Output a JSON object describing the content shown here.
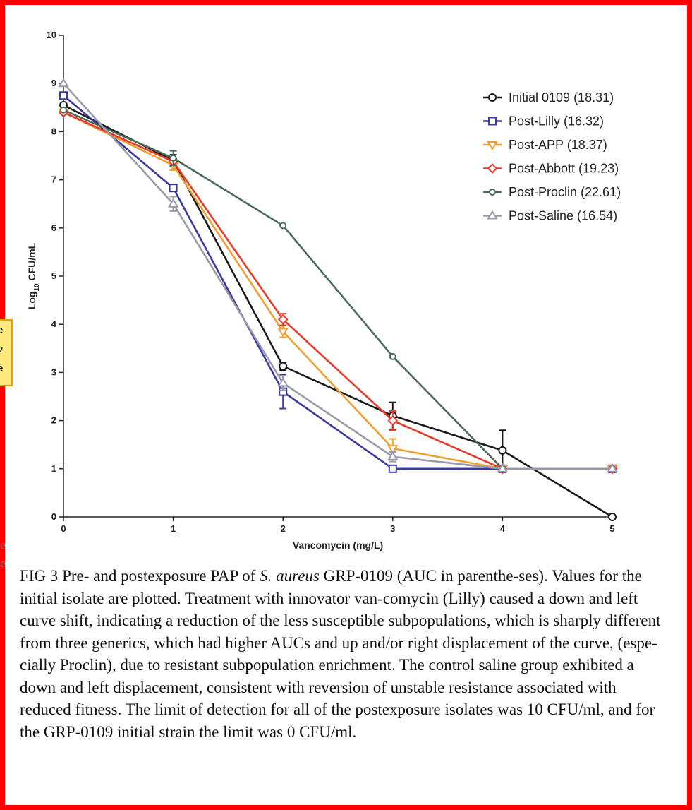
{
  "chart_data": {
    "type": "line",
    "xlabel": "Vancomycin (mg/L)",
    "ylabel_main": "Log",
    "ylabel_sub": "10",
    "ylabel_tail": " CFU/mL",
    "xlim": [
      0,
      5
    ],
    "ylim": [
      0,
      10
    ],
    "x_ticks": [
      0,
      1,
      2,
      3,
      4,
      5
    ],
    "y_ticks": [
      0,
      1,
      2,
      3,
      4,
      5,
      6,
      7,
      8,
      9,
      10
    ],
    "legend_position": "top-right",
    "series": [
      {
        "name": "Initial 0109 (18.31)",
        "color": "#1a1a1a",
        "marker": "circle",
        "x": [
          0,
          1,
          2,
          3,
          4,
          5
        ],
        "y": [
          8.55,
          7.4,
          3.13,
          2.1,
          1.38,
          0
        ],
        "err": [
          0,
          0.12,
          0.08,
          0.28,
          0.42,
          0
        ]
      },
      {
        "name": "Post-Lilly (16.32)",
        "color": "#3a3aa0",
        "marker": "square",
        "x": [
          0,
          1,
          2,
          3,
          4,
          5
        ],
        "y": [
          8.75,
          6.83,
          2.6,
          1.0,
          1.0,
          1.0
        ],
        "err": [
          0,
          0,
          0.35,
          0,
          0,
          0
        ]
      },
      {
        "name": "Post-APP (18.37)",
        "color": "#f0a030",
        "marker": "triangle-down",
        "x": [
          0,
          1,
          2,
          3,
          4,
          5
        ],
        "y": [
          8.4,
          7.3,
          3.85,
          1.42,
          1.0,
          1.0
        ],
        "err": [
          0,
          0.1,
          0.12,
          0.2,
          0,
          0
        ]
      },
      {
        "name": "Post-Abbott (19.23)",
        "color": "#e83a2a",
        "marker": "diamond",
        "x": [
          0,
          1,
          2,
          3,
          4,
          5
        ],
        "y": [
          8.4,
          7.38,
          4.1,
          2.0,
          1.0,
          1.0
        ],
        "err": [
          0,
          0,
          0.12,
          0.2,
          0,
          0
        ]
      },
      {
        "name": "Post-Proclin (22.61)",
        "color": "#4a6a5a",
        "marker": "circle-small",
        "x": [
          0,
          1,
          2,
          3,
          4
        ],
        "y": [
          8.45,
          7.45,
          6.05,
          3.33,
          1.0
        ],
        "err": [
          0,
          0.15,
          0,
          0,
          0
        ]
      },
      {
        "name": "Post-Saline (16.54)",
        "color": "#9a9aaa",
        "marker": "triangle-up",
        "x": [
          0,
          1,
          2,
          3,
          4,
          5
        ],
        "y": [
          9.0,
          6.5,
          2.78,
          1.25,
          1.0,
          1.0
        ],
        "err": [
          0,
          0.15,
          0.15,
          0.1,
          0,
          0
        ]
      }
    ]
  },
  "caption": {
    "label": "FIG 3",
    "text_1": " Pre- and postexposure PAP of ",
    "species": "S. aureus",
    "text_2": " GRP-0109 (AUC in parenthe-ses). Values for the initial isolate are plotted. Treatment with innovator van-comycin (Lilly) caused a down and left curve shift, indicating a reduction of the less susceptible subpopulations, which is sharply different from three generics, which had higher AUCs and up and/or right displacement of the curve, (espe-cially Proclin), due to resistant subpopulation enrichment. The control saline group exhibited a down and left displacement, consistent with reversion of unstable resistance associated with reduced fitness. The limit of detection for all of the postexposure isolates was 10 CFU/ml, and for the GRP-0109 initial strain the limit was 0 CFU/ml."
  },
  "colors": {
    "frame": "#ff0000",
    "note_fill": "#ffe97a",
    "note_border": "#e8a000"
  }
}
